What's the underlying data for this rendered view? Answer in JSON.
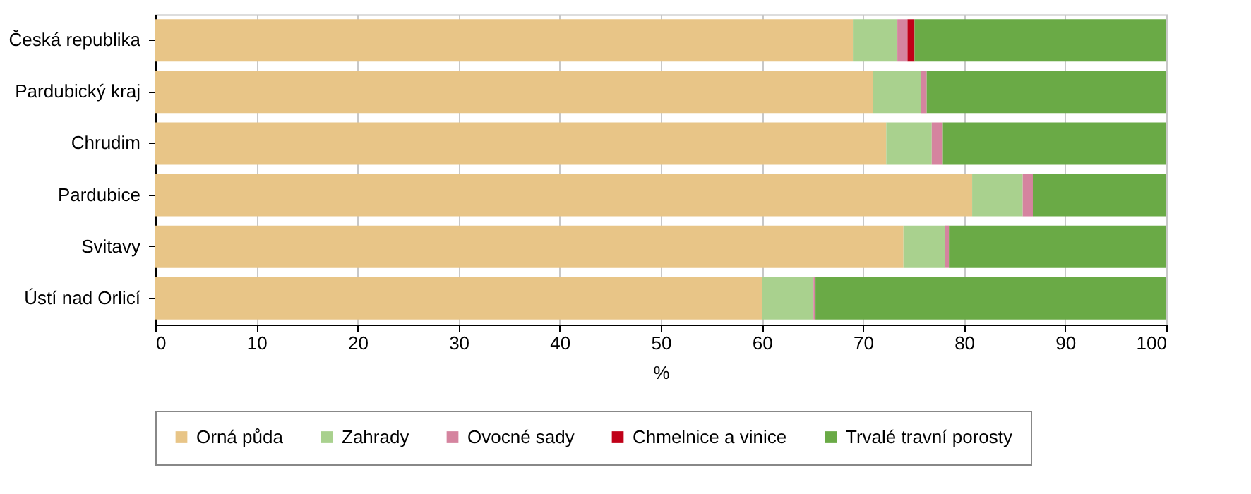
{
  "chart_data": {
    "type": "bar",
    "orientation": "horizontal",
    "stacked": true,
    "categories": [
      "Česká republika",
      "Pardubický kraj",
      "Chrudim",
      "Pardubice",
      "Svitavy",
      "Ústí nad Orlicí"
    ],
    "series": [
      {
        "name": "Orná půda",
        "color": "#e8c587",
        "values": [
          69.0,
          71.0,
          72.3,
          80.8,
          74.0,
          60.0
        ]
      },
      {
        "name": "Zahrady",
        "color": "#a9d18e",
        "values": [
          4.4,
          4.7,
          4.5,
          5.0,
          4.1,
          5.1
        ]
      },
      {
        "name": "Ovocné sady",
        "color": "#d5849f",
        "values": [
          1.0,
          0.6,
          1.1,
          1.0,
          0.4,
          0.2
        ]
      },
      {
        "name": "Chmelnice a vinice",
        "color": "#c00018",
        "values": [
          0.7,
          0,
          0,
          0,
          0,
          0
        ]
      },
      {
        "name": "Trvalé travní porosty",
        "color": "#6aaa46",
        "values": [
          24.9,
          23.7,
          22.1,
          13.2,
          21.5,
          34.7
        ]
      }
    ],
    "xlabel": "%",
    "xlim": [
      0,
      100
    ],
    "xticks": [
      0,
      10,
      20,
      30,
      40,
      50,
      60,
      70,
      80,
      90,
      100
    ],
    "grid": "x",
    "legend": "bottom"
  }
}
